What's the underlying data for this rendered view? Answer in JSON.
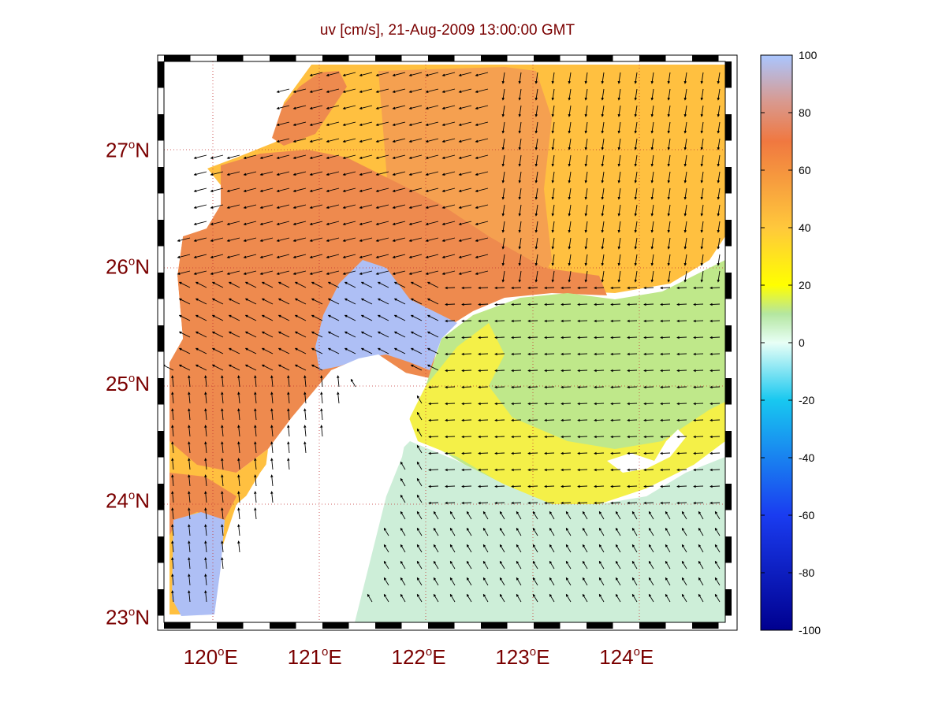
{
  "figure": {
    "title": "uv [cm/s], 21-Aug-2009 13:00:00 GMT",
    "label_color": "#7a0000"
  },
  "map": {
    "lon_range": [
      119.55,
      124.95
    ],
    "lat_range": [
      22.95,
      27.75
    ],
    "lat_ticks": [
      {
        "value": 23,
        "deg": "23",
        "hemi": "N"
      },
      {
        "value": 24,
        "deg": "24",
        "hemi": "N"
      },
      {
        "value": 25,
        "deg": "25",
        "hemi": "N"
      },
      {
        "value": 26,
        "deg": "26",
        "hemi": "N"
      },
      {
        "value": 27,
        "deg": "27",
        "hemi": "N"
      }
    ],
    "lon_ticks": [
      {
        "value": 120,
        "deg": "120",
        "hemi": "E"
      },
      {
        "value": 121,
        "deg": "121",
        "hemi": "E"
      },
      {
        "value": 122,
        "deg": "122",
        "hemi": "E"
      },
      {
        "value": 123,
        "deg": "123",
        "hemi": "E"
      },
      {
        "value": 124,
        "deg": "124",
        "hemi": "E"
      }
    ],
    "grid": true,
    "land_color": "#ffffff",
    "vectors": "black quiver arrows showing surface current direction"
  },
  "colorbar": {
    "min": -100,
    "max": 100,
    "ticks": [
      "100",
      "80",
      "60",
      "40",
      "20",
      "0",
      "-20",
      "-40",
      "-60",
      "-80",
      "-100"
    ],
    "stops": [
      {
        "v": -100,
        "color": "#00008f"
      },
      {
        "v": -60,
        "color": "#1a3cf0"
      },
      {
        "v": -20,
        "color": "#18c8f0"
      },
      {
        "v": 0,
        "color": "#e8fff6"
      },
      {
        "v": 10,
        "color": "#b4e6a0"
      },
      {
        "v": 20,
        "color": "#ffff00"
      },
      {
        "v": 40,
        "color": "#ffc83c"
      },
      {
        "v": 70,
        "color": "#f07840"
      },
      {
        "v": 100,
        "color": "#aac6ff"
      }
    ]
  }
}
